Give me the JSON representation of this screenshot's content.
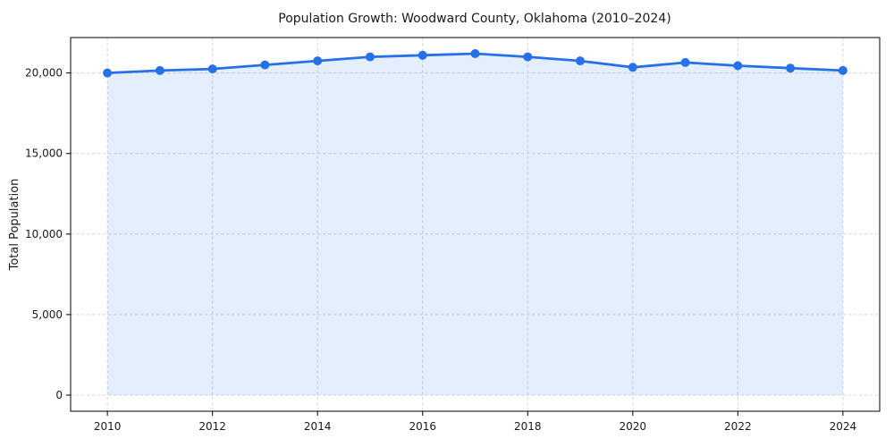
{
  "figure": {
    "background": "#ffffff"
  },
  "chart_data": {
    "type": "line",
    "title": "Population Growth: Woodward County, Oklahoma (2010–2024)",
    "xlabel": "",
    "ylabel": "Total Population",
    "x": [
      2010,
      2011,
      2012,
      2013,
      2014,
      2015,
      2016,
      2017,
      2018,
      2019,
      2020,
      2021,
      2022,
      2023,
      2024
    ],
    "series": [
      {
        "name": "Total Population",
        "values": [
          20000,
          20150,
          20250,
          20500,
          20750,
          21000,
          21100,
          21200,
          21000,
          20750,
          20350,
          20650,
          20450,
          20300,
          20150
        ]
      }
    ],
    "xticks": [
      2010,
      2012,
      2014,
      2016,
      2018,
      2020,
      2022,
      2024
    ],
    "yticks": [
      0,
      5000,
      10000,
      15000,
      20000
    ],
    "xlim": [
      2009.3,
      2024.7
    ],
    "ylim": [
      -1000,
      22200
    ],
    "grid": true,
    "legend_position": "none",
    "area_fill_to": 0,
    "marker": "circle",
    "colors": {
      "line": "#2671e8",
      "fill_opacity": 0.12,
      "grid": "#d8d8d8",
      "axis": "#000000",
      "text": "#1a1a1a",
      "background": "#ffffff"
    }
  }
}
